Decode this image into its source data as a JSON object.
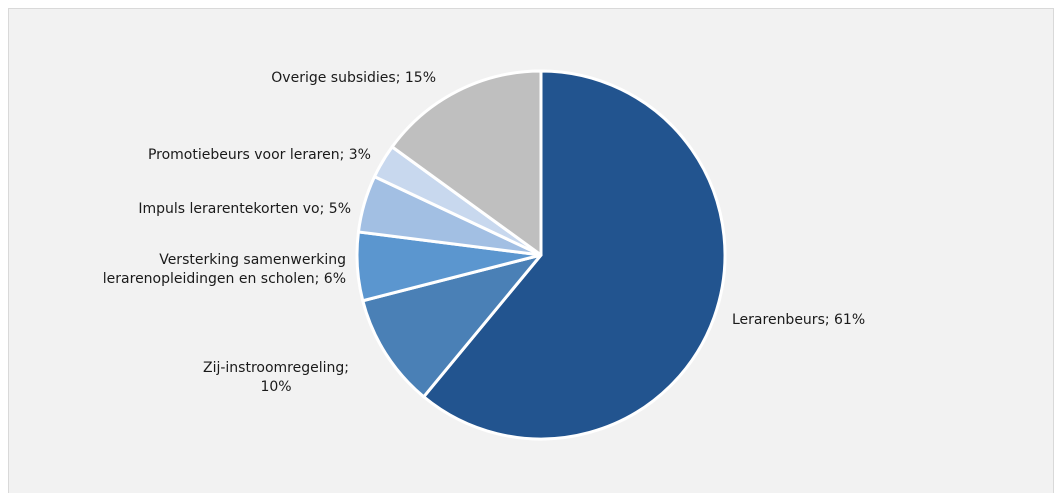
{
  "chart_data": {
    "type": "pie",
    "slices": [
      {
        "name": "Lerarenbeurs",
        "value": 61,
        "label_lines": [
          "Lerarenbeurs; 61%"
        ],
        "color": "#22548f"
      },
      {
        "name": "Zij-instroomregeling",
        "value": 10,
        "label_lines": [
          "Zij-instroomregeling;",
          "10%"
        ],
        "color": "#4a80b6"
      },
      {
        "name": "Versterking samenwerking lerarenopleidingen en scholen",
        "value": 6,
        "label_lines": [
          "Versterking samenwerking",
          "lerarenopleidingen en scholen; 6%"
        ],
        "color": "#5b96cf"
      },
      {
        "name": "Impuls lerarentekorten vo",
        "value": 5,
        "label_lines": [
          "Impuls lerarentekorten vo; 5%"
        ],
        "color": "#a2bfe3"
      },
      {
        "name": "Promotiebeurs voor leraren",
        "value": 3,
        "label_lines": [
          "Promotiebeurs voor leraren; 3%"
        ],
        "color": "#c8d8ee"
      },
      {
        "name": "Overige subsidies",
        "value": 15,
        "label_lines": [
          "Overige subsidies; 15%"
        ],
        "color": "#bfbfbf"
      }
    ],
    "start_angle_deg": 0,
    "direction": "clockwise"
  }
}
